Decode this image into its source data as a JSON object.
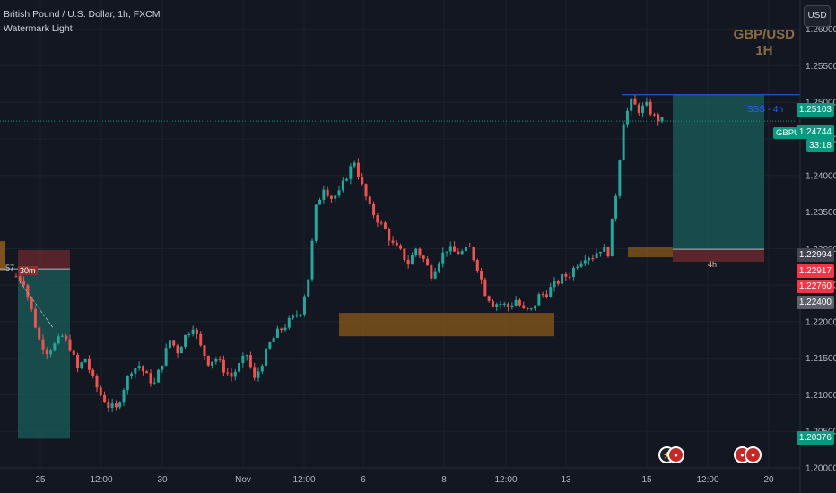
{
  "header": {
    "symbol_title": "British Pound / U.S. Dollar, 1h, FXCM",
    "indicator": "Watermark Light"
  },
  "watermark": {
    "pair": "GBP/USD",
    "timeframe": "1H"
  },
  "currency_button": "USD",
  "price_labels": {
    "sss": "1.25103",
    "current": "1.24744",
    "countdown": "33:18",
    "l1": "1.22994",
    "l2": "1.22917",
    "l3": "1.22760",
    "l4": "1.22400",
    "l5": "1.20376"
  },
  "annotations": {
    "sss_label": "SSS - 4h",
    "symbol_tag": "GBPUSD",
    "tf_30m": "30m",
    "tf_4h": "4h",
    "left_cut": "57"
  },
  "colors": {
    "bull": "#26a69a",
    "bear": "#ef5350",
    "background": "#131722",
    "zone_orange": "#8a5a1a",
    "tp_teal": "#1b5e5a",
    "sl_red": "#6b2a2e"
  },
  "chart_data": {
    "type": "candlestick",
    "title": "British Pound / U.S. Dollar, 1h, FXCM",
    "y_ticks": [
      "1.26000",
      "1.25500",
      "1.25000",
      "1.24500",
      "1.24000",
      "1.23500",
      "1.23000",
      "1.22500",
      "1.22000",
      "1.21500",
      "1.21000",
      "1.20500",
      "1.20000"
    ],
    "x_ticks": [
      "25",
      "12:00",
      "30",
      "Nov",
      "12:00",
      "6",
      "8",
      "12:00",
      "13",
      "15",
      "12:00",
      "20"
    ],
    "ylim": [
      1.2,
      1.264
    ],
    "close_path": [
      [
        0,
        1.2262
      ],
      [
        2,
        1.2255
      ],
      [
        4,
        1.2215
      ],
      [
        6,
        1.2175
      ],
      [
        8,
        1.216
      ],
      [
        10,
        1.2168
      ],
      [
        12,
        1.218
      ],
      [
        14,
        1.2165
      ],
      [
        16,
        1.2135
      ],
      [
        18,
        1.215
      ],
      [
        20,
        1.212
      ],
      [
        22,
        1.21
      ],
      [
        24,
        1.2085
      ],
      [
        26,
        1.208
      ],
      [
        28,
        1.211
      ],
      [
        30,
        1.2135
      ],
      [
        32,
        1.214
      ],
      [
        34,
        1.2125
      ],
      [
        36,
        1.2115
      ],
      [
        38,
        1.2145
      ],
      [
        40,
        1.2175
      ],
      [
        42,
        1.216
      ],
      [
        44,
        1.218
      ],
      [
        46,
        1.2195
      ],
      [
        48,
        1.2165
      ],
      [
        50,
        1.2145
      ],
      [
        52,
        1.215
      ],
      [
        54,
        1.2135
      ],
      [
        56,
        1.2125
      ],
      [
        58,
        1.214
      ],
      [
        60,
        1.2155
      ],
      [
        62,
        1.212
      ],
      [
        64,
        1.2145
      ],
      [
        66,
        1.217
      ],
      [
        68,
        1.2185
      ],
      [
        70,
        1.2195
      ],
      [
        72,
        1.2205
      ],
      [
        74,
        1.2215
      ],
      [
        76,
        1.226
      ],
      [
        78,
        1.2355
      ],
      [
        80,
        1.2385
      ],
      [
        82,
        1.237
      ],
      [
        84,
        1.2375
      ],
      [
        86,
        1.24
      ],
      [
        88,
        1.242
      ],
      [
        90,
        1.2385
      ],
      [
        92,
        1.2355
      ],
      [
        94,
        1.234
      ],
      [
        96,
        1.2325
      ],
      [
        98,
        1.2305
      ],
      [
        100,
        1.2295
      ],
      [
        102,
        1.228
      ],
      [
        104,
        1.23
      ],
      [
        106,
        1.2285
      ],
      [
        108,
        1.2265
      ],
      [
        110,
        1.2285
      ],
      [
        112,
        1.23
      ],
      [
        114,
        1.2295
      ],
      [
        116,
        1.2295
      ],
      [
        118,
        1.23
      ],
      [
        120,
        1.2275
      ],
      [
        122,
        1.224
      ],
      [
        124,
        1.2225
      ],
      [
        126,
        1.2225
      ],
      [
        128,
        1.222
      ],
      [
        130,
        1.223
      ],
      [
        132,
        1.2215
      ],
      [
        134,
        1.2215
      ],
      [
        136,
        1.2235
      ],
      [
        138,
        1.224
      ],
      [
        140,
        1.225
      ],
      [
        142,
        1.226
      ],
      [
        144,
        1.2265
      ],
      [
        146,
        1.228
      ],
      [
        148,
        1.229
      ],
      [
        150,
        1.229
      ],
      [
        152,
        1.23
      ],
      [
        154,
        1.2295
      ],
      [
        156,
        1.2375
      ],
      [
        158,
        1.2475
      ],
      [
        160,
        1.25
      ],
      [
        162,
        1.249
      ],
      [
        164,
        1.2495
      ],
      [
        166,
        1.248
      ],
      [
        168,
        1.2474
      ]
    ],
    "zones": {
      "demand_zone_1": [
        1.218,
        1.2212
      ],
      "demand_zone_2": [
        1.2288,
        1.2302
      ],
      "long_position_target": 1.251,
      "long_position_entry": 1.2299,
      "long_position_stop": 1.2288,
      "short_box_top": 1.2298,
      "short_box_mid": 1.2272,
      "short_box_bottom": 1.204
    },
    "sss_level": 1.25103,
    "current_price": 1.24744
  }
}
